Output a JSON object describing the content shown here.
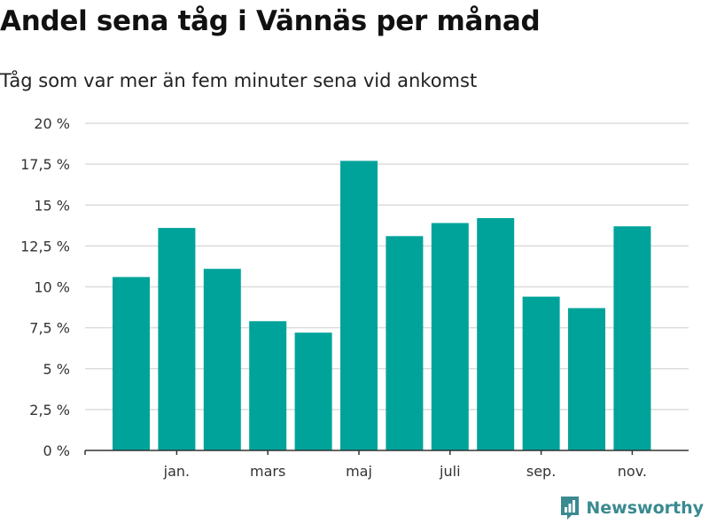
{
  "chart_data": {
    "type": "bar",
    "title": "Andel sena tåg i Vännäs per månad",
    "subtitle": "Tåg som var mer än fem minuter sena vid ankomst",
    "xlabel": "",
    "ylabel": "",
    "ylim": [
      0,
      20
    ],
    "yticks": [
      0,
      2.5,
      5,
      7.5,
      10,
      12.5,
      15,
      17.5,
      20
    ],
    "ytick_labels": [
      "0 %",
      "2,5 %",
      "5 %",
      "7,5 %",
      "10 %",
      "12,5 %",
      "15 %",
      "17,5 %",
      "20 %"
    ],
    "xtick_labels": [
      {
        "index": 1,
        "label": "jan."
      },
      {
        "index": 3,
        "label": "mars"
      },
      {
        "index": 5,
        "label": "maj"
      },
      {
        "index": 7,
        "label": "juli"
      },
      {
        "index": 9,
        "label": "sep."
      },
      {
        "index": 11,
        "label": "nov."
      }
    ],
    "values": [
      10.6,
      13.6,
      11.1,
      7.9,
      7.2,
      17.7,
      13.1,
      13.9,
      14.2,
      9.4,
      8.7,
      13.7
    ],
    "bar_color": "#00a39a",
    "grid": true,
    "legend": "none"
  },
  "brand": {
    "name": "Newsworthy",
    "color": "#3a8a90"
  }
}
